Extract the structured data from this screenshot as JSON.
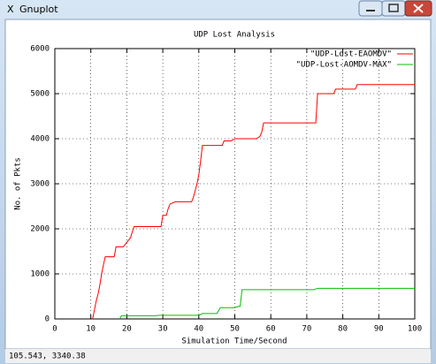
{
  "window": {
    "title": "Gnuplot",
    "status": "105.543,  3340.38"
  },
  "chart_data": {
    "type": "line",
    "title": "UDP Lost Analysis",
    "xlabel": "Simulation Time/Second",
    "ylabel": "No. of Pkts",
    "xlim": [
      0,
      100
    ],
    "xticks": [
      0,
      10,
      20,
      30,
      40,
      50,
      60,
      70,
      80,
      90,
      100
    ],
    "ylim": [
      0,
      6000
    ],
    "yticks": [
      0,
      1000,
      2000,
      3000,
      4000,
      5000,
      6000
    ],
    "grid": true,
    "legend": "top-right",
    "series": [
      {
        "name": "\"UDP-Lost-EAOMDV\"",
        "color": "#ff0000",
        "x": [
          10.5,
          11,
          11.5,
          12,
          12.5,
          13,
          13.5,
          14,
          16.5,
          17,
          19,
          19.5,
          21,
          22,
          29.5,
          30,
          31,
          31.5,
          32,
          33.5,
          38,
          38.5,
          39.5,
          40,
          40.5,
          41,
          46.5,
          47,
          49,
          50,
          56,
          57,
          57.5,
          58,
          72.5,
          73,
          77.5,
          78,
          83.5,
          84,
          100
        ],
        "values": [
          0,
          200,
          400,
          550,
          750,
          1000,
          1200,
          1380,
          1380,
          1600,
          1600,
          1650,
          1800,
          2050,
          2050,
          2300,
          2300,
          2450,
          2550,
          2600,
          2600,
          2700,
          3000,
          3200,
          3500,
          3850,
          3850,
          3950,
          3950,
          4000,
          4000,
          4050,
          4150,
          4350,
          4350,
          5000,
          5000,
          5100,
          5100,
          5200,
          5200
        ]
      },
      {
        "name": "\"UDP-Lost-AOMDV-MAX\"",
        "color": "#00c000",
        "x": [
          18,
          18.5,
          28,
          29,
          40,
          41,
          45,
          46,
          50,
          51,
          51.5,
          52,
          72,
          73,
          100
        ],
        "values": [
          0,
          70,
          70,
          80,
          80,
          120,
          120,
          250,
          250,
          280,
          280,
          650,
          650,
          680,
          680
        ]
      }
    ]
  }
}
